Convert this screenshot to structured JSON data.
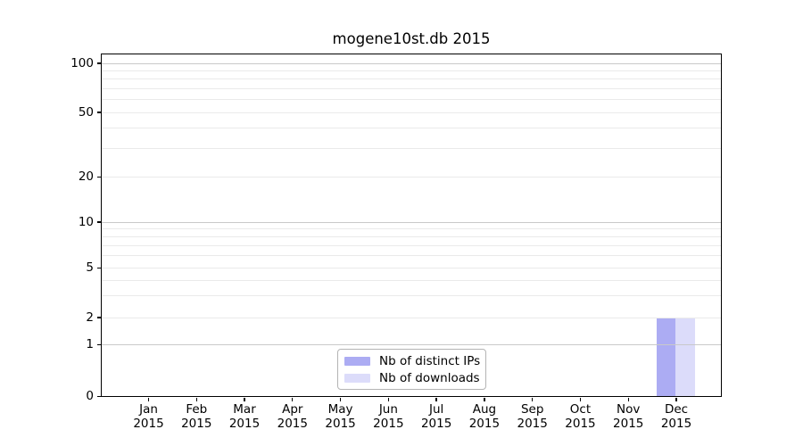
{
  "chart_data": {
    "type": "bar",
    "title": "mogene10st.db 2015",
    "xlabel": "",
    "ylabel": "",
    "yscale": "log-with-zero-baseline",
    "ylim": [
      0,
      100
    ],
    "grid": "horizontal major and minor gridlines",
    "legend_position": "lower center",
    "grid_major_color": "#c9c9c9",
    "grid_minor_color": "#eaeaea",
    "categories": [
      {
        "month": "Jan",
        "year": "2015"
      },
      {
        "month": "Feb",
        "year": "2015"
      },
      {
        "month": "Mar",
        "year": "2015"
      },
      {
        "month": "Apr",
        "year": "2015"
      },
      {
        "month": "May",
        "year": "2015"
      },
      {
        "month": "Jun",
        "year": "2015"
      },
      {
        "month": "Jul",
        "year": "2015"
      },
      {
        "month": "Aug",
        "year": "2015"
      },
      {
        "month": "Sep",
        "year": "2015"
      },
      {
        "month": "Oct",
        "year": "2015"
      },
      {
        "month": "Nov",
        "year": "2015"
      },
      {
        "month": "Dec",
        "year": "2015"
      }
    ],
    "ytick_labels": [
      "100",
      "50",
      "20",
      "10",
      "5",
      "2",
      "1",
      "0"
    ],
    "ytick_values": [
      100,
      50,
      20,
      10,
      5,
      2,
      1,
      0
    ],
    "series": [
      {
        "name": "Nb of distinct IPs",
        "color": "#acacf3",
        "values": [
          0,
          0,
          0,
          0,
          0,
          0,
          0,
          0,
          0,
          0,
          0,
          2
        ]
      },
      {
        "name": "Nb of downloads",
        "color": "#dcdcfa",
        "values": [
          0,
          0,
          0,
          0,
          0,
          0,
          0,
          0,
          0,
          0,
          0,
          2
        ]
      }
    ]
  }
}
